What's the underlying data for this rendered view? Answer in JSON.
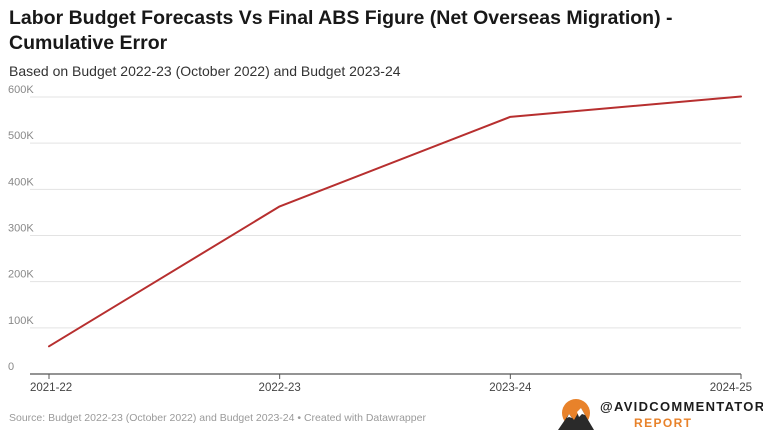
{
  "title": "Labor Budget Forecasts Vs Final ABS Figure (Net Overseas Migration) - Cumulative Error",
  "subtitle": "Based on Budget 2022-23 (October 2022) and Budget 2023-24",
  "footer": "Source: Budget 2022-23 (October 2022) and Budget 2023-24 • Created with Datawrapper",
  "logo": {
    "name": "@AVIDCOMMENTATOR",
    "report": "Report",
    "icon": "mountain-sun-icon"
  },
  "colors": {
    "line": "#b72f2f",
    "grid": "#e3e3e3",
    "axis": "#555555",
    "logo_accent": "#e8822a"
  },
  "chart_data": {
    "type": "line",
    "categories": [
      "2021-22",
      "2022-23",
      "2023-24",
      "2024-25"
    ],
    "series": [
      {
        "values": [
          60000,
          363000,
          557000,
          601000
        ]
      }
    ],
    "ylim": [
      0,
      600000
    ],
    "yticks": [
      0,
      100000,
      200000,
      300000,
      400000,
      500000,
      600000
    ],
    "ytick_labels": [
      "0",
      "100K",
      "200K",
      "300K",
      "400K",
      "500K",
      "600K"
    ],
    "grid": true,
    "legend": "none"
  }
}
